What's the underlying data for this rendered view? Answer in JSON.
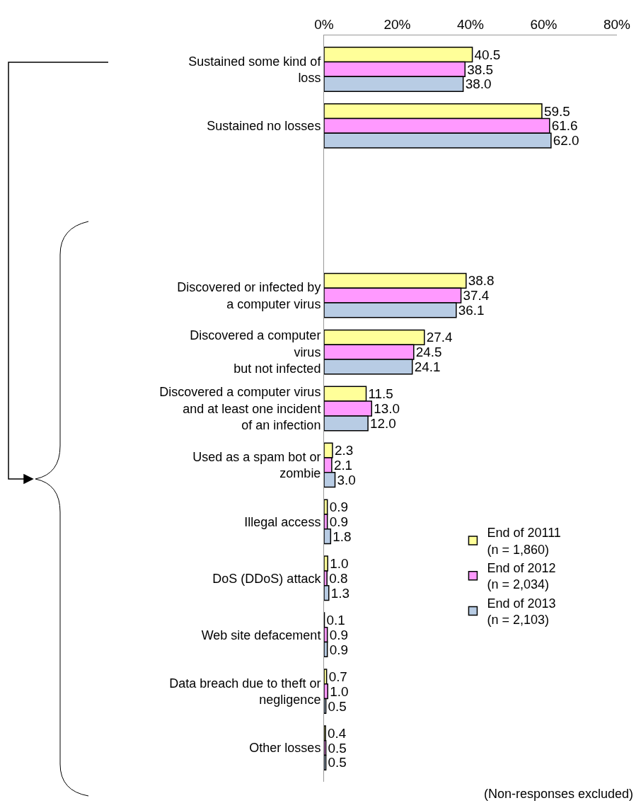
{
  "chart_data": {
    "type": "bar",
    "orientation": "horizontal",
    "categories": [
      "Sustained some kind of\nloss",
      "Sustained no losses",
      null,
      null,
      "Discovered or infected by\na computer virus",
      "Discovered a computer\nvirus\nbut not infected",
      "Discovered a computer virus\nand at least one incident\nof an infection",
      "Used as a spam bot or\nzombie",
      "Illegal access",
      "DoS (DDoS) attack",
      "Web site defacement",
      "Data breach due to theft or\nnegligence",
      "Other losses"
    ],
    "series": [
      {
        "name": "End of 20111\n(n = 1,860)",
        "color": "#ffff99",
        "values": [
          40.5,
          59.5,
          null,
          null,
          38.8,
          27.4,
          11.5,
          2.3,
          0.9,
          1.0,
          0.1,
          0.7,
          0.4
        ],
        "value_labels": [
          "40.5",
          "59.5",
          null,
          null,
          "38.8",
          "27.4",
          "11.5",
          "2.3",
          "0.9",
          "1.0",
          "0.1",
          "0.7",
          "0.4"
        ]
      },
      {
        "name": "End of 2012\n(n = 2,034)",
        "color": "#ff99ff",
        "values": [
          38.5,
          61.6,
          null,
          null,
          37.4,
          24.5,
          13.0,
          2.1,
          0.9,
          0.8,
          0.9,
          1.0,
          0.5
        ],
        "value_labels": [
          "38.5",
          "61.6",
          null,
          null,
          "37.4",
          "24.5",
          "13.0",
          "2.1",
          "0.9",
          "0.8",
          "0.9",
          "1.0",
          "0.5"
        ]
      },
      {
        "name": "End of 2013\n(n = 2,103)",
        "color": "#b8cce4",
        "values": [
          38.0,
          62.0,
          null,
          null,
          36.1,
          24.1,
          12.0,
          3.0,
          1.8,
          1.3,
          0.9,
          0.5,
          0.5
        ],
        "value_labels": [
          "38.0",
          "62.0",
          null,
          null,
          "36.1",
          "24.1",
          "12.0",
          "3.0",
          "1.8",
          "1.3",
          "0.9",
          "0.5",
          "0.5"
        ]
      }
    ],
    "xlim": [
      0,
      80
    ],
    "xticks": [
      {
        "value": 0,
        "label": "0%"
      },
      {
        "value": 20,
        "label": "20%"
      },
      {
        "value": 40,
        "label": "40%"
      },
      {
        "value": 60,
        "label": "60%"
      },
      {
        "value": 80,
        "label": "80%"
      }
    ],
    "legend": "bottom right",
    "annotations": [
      "(Non-responses excluded)"
    ]
  }
}
